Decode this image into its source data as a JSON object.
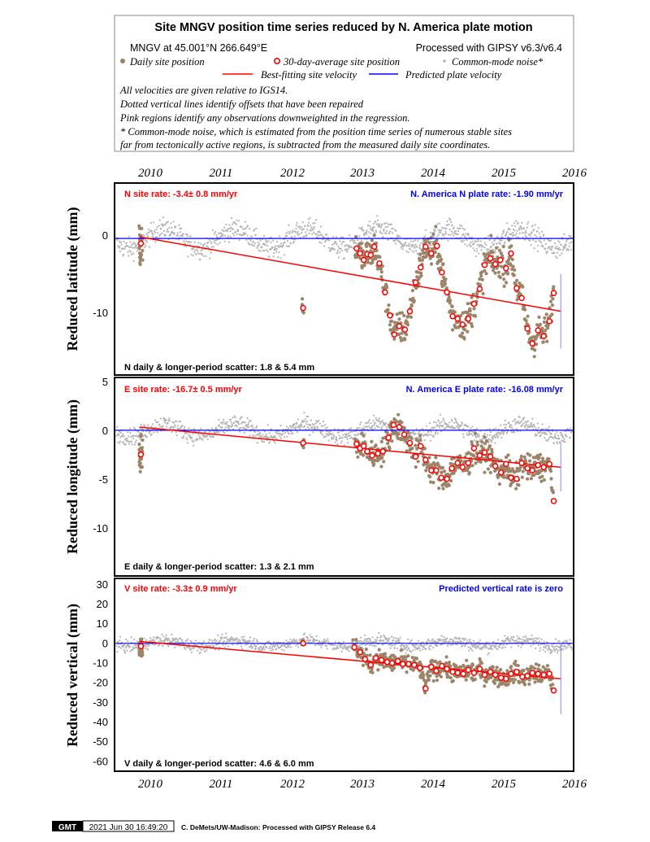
{
  "header": {
    "title": "Site MNGV position time series reduced by N. America plate motion",
    "site_line": "MNGV at 45.001°N 266.649°E",
    "processed_line": "Processed with GIPSY v6.3/v6.4",
    "legend": {
      "daily": "Daily site position",
      "avg30": "30-day-average site position",
      "cm_noise": "Common-mode noise*",
      "best_fit": "Best-fitting site velocity",
      "plate_vel": "Predicted plate velocity"
    },
    "notes": [
      "All velocities are given relative to IGS14.",
      "Dotted vertical lines identify offsets that have been repaired",
      "Pink regions identify any observations downweighted in the regression.",
      "* Common-mode noise, which is estimated from the position time series of numerous stable sites",
      "far from tectonically active regions, is subtracted from the measured daily site coordinates."
    ]
  },
  "colors": {
    "daily": "#9b8468",
    "noise": "#b4b4b4",
    "fit": "#ff0000",
    "plate": "#0000ff",
    "site_rate_text": "#ff0000",
    "plate_rate_text": "#0000ff"
  },
  "x_axis": {
    "top_ticks": [
      "2010",
      "2011",
      "2012",
      "2013",
      "2014",
      "2015",
      "2016"
    ],
    "bottom_ticks": [
      "2010",
      "2011",
      "2012",
      "2013",
      "2014",
      "2015",
      "2016"
    ]
  },
  "panels": {
    "north": {
      "ylabel": "Reduced latitude (mm)",
      "yticks": [
        "0",
        "-10"
      ],
      "site_rate": "N site rate:  -3.4± 0.8 mm/yr",
      "plate_rate": "N. America N plate rate: -1.90 mm/yr",
      "scatter": "N daily & longer-period scatter:   1.8 &   5.4 mm"
    },
    "east": {
      "ylabel": "Reduced longitude (mm)",
      "yticks": [
        "5",
        "0",
        "-5",
        "-10"
      ],
      "site_rate": "E site rate:  -16.7± 0.5 mm/yr",
      "plate_rate": "N. America E plate rate: -16.08 mm/yr",
      "scatter": "E daily & longer-period scatter:   1.3 &   2.1 mm"
    },
    "vertical": {
      "ylabel": "Reduced vertical (mm)",
      "yticks": [
        "30",
        "20",
        "10",
        "0",
        "-10",
        "-20",
        "-30",
        "-40",
        "-50",
        "-60"
      ],
      "site_rate": "V site rate:  -3.3± 0.9 mm/yr",
      "plate_rate": "Predicted vertical rate is zero",
      "scatter": "V daily & longer-period scatter:   4.6 &   6.0 mm"
    }
  },
  "footer": {
    "logo": "GMT",
    "timestamp": "2021 Jun 30 16:49:20",
    "credit": "C. DeMets/UW-Madison: Processed with GIPSY Release 6.4"
  },
  "chart_data": [
    {
      "type": "scatter",
      "title": "",
      "xlabel": "",
      "ylabel": "Reduced latitude (mm)",
      "xlim": [
        2009.55,
        2016.0
      ],
      "ylim": [
        -16.5,
        6.7
      ],
      "grid": false,
      "series": [
        {
          "name": "Best-fitting site velocity",
          "type": "line",
          "x": [
            2009.9,
            2015.82
          ],
          "y": [
            0.2,
            -8.8
          ]
        },
        {
          "name": "Predicted plate velocity",
          "type": "line",
          "x": [
            2009.55,
            2016.0
          ],
          "y": [
            0,
            0
          ]
        },
        {
          "name": "30-day-average site position",
          "type": "scatter",
          "points": [
            [
              2009.92,
              -0.6
            ],
            [
              2012.2,
              -8.4
            ],
            [
              2012.95,
              -1.2
            ],
            [
              2013.0,
              -1.8
            ],
            [
              2013.05,
              -2.6
            ],
            [
              2013.1,
              -1.9
            ],
            [
              2013.15,
              -2.0
            ],
            [
              2013.2,
              -1.0
            ],
            [
              2013.27,
              -3.0
            ],
            [
              2013.35,
              -6.5
            ],
            [
              2013.42,
              -9.3
            ],
            [
              2013.48,
              -11.6
            ],
            [
              2013.55,
              -10.6
            ],
            [
              2013.63,
              -11.0
            ],
            [
              2013.7,
              -8.8
            ],
            [
              2013.78,
              -5.3
            ],
            [
              2013.85,
              -3.5
            ],
            [
              2013.92,
              -1.0
            ],
            [
              2014.0,
              -1.8
            ],
            [
              2014.08,
              -0.9
            ],
            [
              2014.15,
              -4.1
            ],
            [
              2014.22,
              -6.5
            ],
            [
              2014.3,
              -9.4
            ],
            [
              2014.37,
              -9.7
            ],
            [
              2014.44,
              -10.4
            ],
            [
              2014.52,
              -9.7
            ],
            [
              2014.6,
              -7.9
            ],
            [
              2014.68,
              -6.1
            ],
            [
              2014.75,
              -3.2
            ],
            [
              2014.83,
              -2.4
            ],
            [
              2014.9,
              -3.1
            ],
            [
              2014.97,
              -2.6
            ],
            [
              2015.05,
              -3.6
            ],
            [
              2015.12,
              -1.8
            ],
            [
              2015.2,
              -6.0
            ],
            [
              2015.27,
              -7.2
            ],
            [
              2015.35,
              -10.9
            ],
            [
              2015.42,
              -12.7
            ],
            [
              2015.5,
              -11.1
            ],
            [
              2015.58,
              -11.8
            ],
            [
              2015.66,
              -10.0
            ],
            [
              2015.72,
              -6.6
            ]
          ]
        }
      ]
    },
    {
      "type": "scatter",
      "title": "",
      "xlabel": "",
      "ylabel": "Reduced longitude (mm)",
      "xlim": [
        2009.55,
        2016.0
      ],
      "ylim": [
        -13.8,
        5.0
      ],
      "grid": false,
      "series": [
        {
          "name": "Best-fitting site velocity",
          "type": "line",
          "x": [
            2009.9,
            2015.82
          ],
          "y": [
            0.3,
            -3.5
          ]
        },
        {
          "name": "Predicted plate velocity",
          "type": "line",
          "x": [
            2009.55,
            2016.0
          ],
          "y": [
            0,
            0
          ]
        },
        {
          "name": "30-day-average site position",
          "type": "scatter",
          "points": [
            [
              2009.92,
              -2.3
            ],
            [
              2012.2,
              -1.2
            ],
            [
              2012.95,
              -1.3
            ],
            [
              2013.0,
              -1.7
            ],
            [
              2013.05,
              -1.5
            ],
            [
              2013.1,
              -2.0
            ],
            [
              2013.17,
              -2.4
            ],
            [
              2013.25,
              -2.2
            ],
            [
              2013.32,
              -2.0
            ],
            [
              2013.4,
              -0.7
            ],
            [
              2013.47,
              0.5
            ],
            [
              2013.55,
              0.3
            ],
            [
              2013.62,
              -0.4
            ],
            [
              2013.7,
              -1.2
            ],
            [
              2013.78,
              -2.5
            ],
            [
              2013.85,
              -1.5
            ],
            [
              2013.92,
              -2.8
            ],
            [
              2014.0,
              -3.8
            ],
            [
              2014.07,
              -3.8
            ],
            [
              2014.14,
              -4.5
            ],
            [
              2014.22,
              -4.6
            ],
            [
              2014.29,
              -3.6
            ],
            [
              2014.37,
              -3.1
            ],
            [
              2014.44,
              -3.5
            ],
            [
              2014.52,
              -3.1
            ],
            [
              2014.6,
              -1.7
            ],
            [
              2014.68,
              -2.4
            ],
            [
              2014.75,
              -2.1
            ],
            [
              2014.83,
              -2.5
            ],
            [
              2014.9,
              -3.4
            ],
            [
              2014.98,
              -4.0
            ],
            [
              2015.05,
              -3.2
            ],
            [
              2015.12,
              -4.5
            ],
            [
              2015.2,
              -4.6
            ],
            [
              2015.27,
              -3.1
            ],
            [
              2015.35,
              -3.6
            ],
            [
              2015.42,
              -3.8
            ],
            [
              2015.5,
              -3.3
            ],
            [
              2015.58,
              -3.5
            ],
            [
              2015.66,
              -3.2
            ],
            [
              2015.72,
              -6.7
            ]
          ]
        }
      ]
    },
    {
      "type": "scatter",
      "title": "",
      "xlabel": "",
      "ylabel": "Reduced vertical (mm)",
      "xlim": [
        2009.55,
        2016.0
      ],
      "ylim": [
        -65,
        33
      ],
      "grid": false,
      "series": [
        {
          "name": "Best-fitting site velocity",
          "type": "line",
          "x": [
            2009.9,
            2015.82
          ],
          "y": [
            1.0,
            -18.0
          ]
        },
        {
          "name": "Predicted plate velocity",
          "type": "line",
          "x": [
            2009.55,
            2016.0
          ],
          "y": [
            0,
            0
          ]
        },
        {
          "name": "30-day-average site position",
          "type": "scatter",
          "points": [
            [
              2009.92,
              -1.5
            ],
            [
              2012.2,
              0.0
            ],
            [
              2012.92,
              -2.0
            ],
            [
              2013.0,
              -4.5
            ],
            [
              2013.07,
              -8.0
            ],
            [
              2013.15,
              -11.0
            ],
            [
              2013.22,
              -7.5
            ],
            [
              2013.3,
              -8.5
            ],
            [
              2013.38,
              -9.5
            ],
            [
              2013.45,
              -10.0
            ],
            [
              2013.53,
              -9.0
            ],
            [
              2013.6,
              -10.5
            ],
            [
              2013.68,
              -10.5
            ],
            [
              2013.76,
              -11.0
            ],
            [
              2013.84,
              -12.5
            ],
            [
              2013.92,
              -23.0
            ],
            [
              2014.0,
              -12.0
            ],
            [
              2014.07,
              -14.0
            ],
            [
              2014.15,
              -11.5
            ],
            [
              2014.22,
              -13.0
            ],
            [
              2014.3,
              -14.5
            ],
            [
              2014.37,
              -15.0
            ],
            [
              2014.45,
              -15.5
            ],
            [
              2014.52,
              -13.5
            ],
            [
              2014.6,
              -15.0
            ],
            [
              2014.68,
              -13.0
            ],
            [
              2014.75,
              -16.0
            ],
            [
              2014.83,
              -14.5
            ],
            [
              2014.9,
              -16.0
            ],
            [
              2014.98,
              -17.5
            ],
            [
              2015.05,
              -18.0
            ],
            [
              2015.12,
              -15.5
            ],
            [
              2015.2,
              -14.5
            ],
            [
              2015.28,
              -17.0
            ],
            [
              2015.35,
              -16.5
            ],
            [
              2015.42,
              -15.0
            ],
            [
              2015.5,
              -15.5
            ],
            [
              2015.58,
              -16.0
            ],
            [
              2015.66,
              -15.5
            ],
            [
              2015.72,
              -24.0
            ]
          ]
        }
      ]
    }
  ]
}
